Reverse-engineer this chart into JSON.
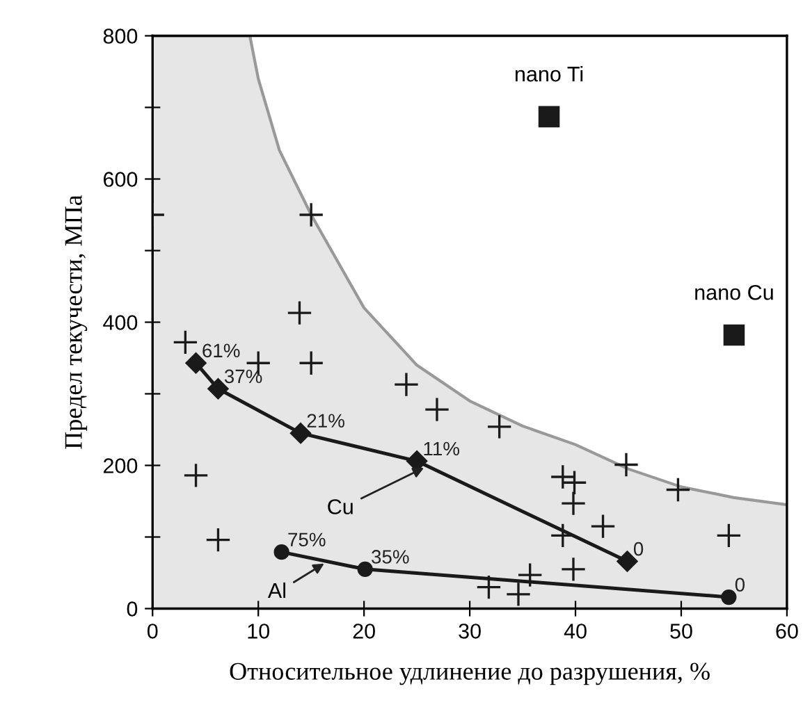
{
  "chart_data": {
    "type": "scatter",
    "xlabel": "Относительное удлинение до разрушения, %",
    "ylabel": "Предел текучести, МПа",
    "xlim": [
      0,
      60
    ],
    "xticks": [
      0,
      10,
      20,
      30,
      40,
      50,
      60
    ],
    "ylim": [
      0,
      800
    ],
    "yticks": [
      0,
      {
        "value": 100,
        "label": null
      },
      200,
      {
        "value": 300,
        "label": null
      },
      400,
      {
        "value": 500,
        "label": null
      },
      600,
      {
        "value": 700,
        "label": null
      },
      800
    ],
    "grid": false,
    "annotations": [
      {
        "text": "61%",
        "x": 4.1,
        "y": 343
      },
      {
        "text": "37%",
        "x": 6.2,
        "y": 307
      },
      {
        "text": "21%",
        "x": 14,
        "y": 245
      },
      {
        "text": "11%",
        "x": 25,
        "y": 206
      },
      {
        "text": "0",
        "x": 44.9,
        "y": 66
      },
      {
        "text": "75%",
        "x": 12.2,
        "y": 79
      },
      {
        "text": "35%",
        "x": 20.1,
        "y": 55
      },
      {
        "text": "0",
        "x": 54.5,
        "y": 16
      }
    ],
    "series": [
      {
        "type": "area",
        "color": "#e6e6e6",
        "x": [
          0,
          9.2,
          10,
          12,
          15,
          20,
          25,
          30,
          35,
          40,
          45,
          50,
          55,
          60
        ],
        "values": [
          800,
          800,
          740,
          640,
          550,
          420,
          340,
          290,
          255,
          229,
          195,
          170,
          155,
          145
        ]
      },
      {
        "color": "#1a1a1a",
        "marker": "cross",
        "x": [
          0,
          15,
          13.9,
          3.1,
          10,
          15,
          24,
          26.9,
          4.1,
          6.2,
          32.8,
          44.8,
          49.7,
          38.8,
          39.9,
          39.8,
          42.6,
          38.8,
          54.5,
          39.8,
          35.7,
          31.8,
          34.6
        ],
        "values": [
          550,
          550,
          413,
          372,
          343,
          343,
          313,
          278,
          186,
          96,
          254,
          201,
          166,
          184,
          176,
          147,
          115,
          102,
          102,
          55,
          47,
          30,
          20
        ]
      },
      {
        "type": "line",
        "name": "Cu",
        "color": "#1a1a1a",
        "marker": "diamond",
        "line_style": "solid",
        "x": [
          4.1,
          6.2,
          14,
          25,
          44.9
        ],
        "values": [
          343,
          307,
          245,
          206,
          66
        ]
      },
      {
        "type": "line",
        "name": "Al",
        "color": "#1a1a1a",
        "marker": "circle",
        "line_style": "solid",
        "x": [
          12.2,
          20.1,
          54.5
        ],
        "values": [
          79,
          55,
          16
        ]
      },
      {
        "name": "nano Ti",
        "color": "#1a1a1a",
        "marker": "square",
        "x": [
          37.5
        ],
        "values": [
          687
        ]
      },
      {
        "name": "nano Cu",
        "color": "#1a1a1a",
        "marker": "square",
        "x": [
          55
        ],
        "values": [
          382
        ]
      }
    ]
  }
}
